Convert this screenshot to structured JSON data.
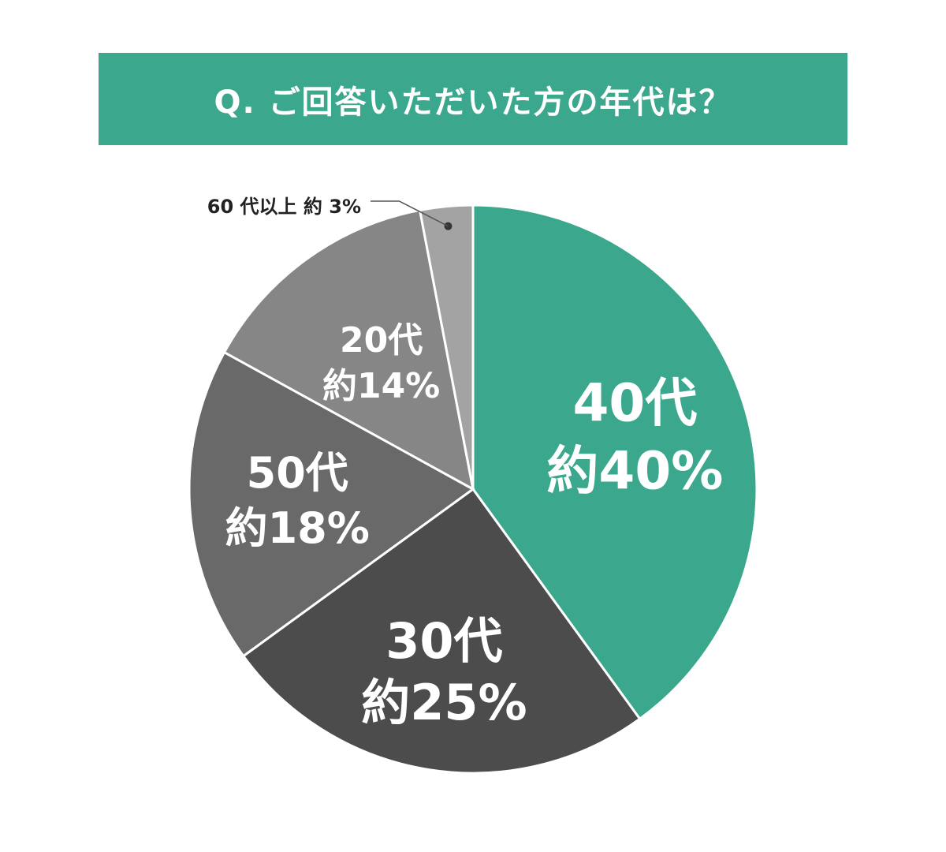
{
  "chart_data": {
    "type": "pie",
    "title": "Q. ご回答いただいた方の年代は？",
    "slices": [
      {
        "category": "40代",
        "value_label": "約40%",
        "value": 40,
        "color": "#3ba88d"
      },
      {
        "category": "30代",
        "value_label": "約25%",
        "value": 25,
        "color": "#4c4c4c"
      },
      {
        "category": "50代",
        "value_label": "約18%",
        "value": 18,
        "color": "#696969"
      },
      {
        "category": "20代",
        "value_label": "約14%",
        "value": 14,
        "color": "#868686"
      },
      {
        "category": "60代以上",
        "value_label": "約3%",
        "value": 3,
        "color": "#a3a3a3"
      }
    ],
    "callout": {
      "text": "60 代以上 約 3%"
    },
    "border_color": "#ffffff"
  }
}
